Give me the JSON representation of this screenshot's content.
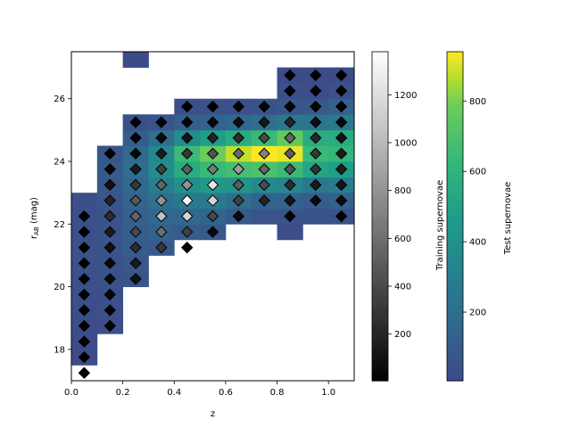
{
  "chart_data": {
    "type": "heatmap",
    "xlabel": "z",
    "ylabel_main": "r",
    "ylabel_sub": "AB",
    "ylabel_unit": " (mag)",
    "xlim": [
      0.0,
      1.1
    ],
    "ylim": [
      17.0,
      27.5
    ],
    "xticks": [
      0.0,
      0.2,
      0.4,
      0.6,
      0.8,
      1.0
    ],
    "xtick_labels": [
      "0.0",
      "0.2",
      "0.4",
      "0.6",
      "0.8",
      "1.0"
    ],
    "yticks": [
      18,
      20,
      22,
      24,
      26
    ],
    "ytick_labels": [
      "18",
      "20",
      "22",
      "24",
      "26"
    ],
    "bins": {
      "x_width": 0.1,
      "y_height": 0.5
    },
    "test_heatmap": {
      "name": "Test supernovae",
      "colormap": "viridis",
      "vmin": 5,
      "vmax": 940,
      "cbar_ticks": [
        200,
        400,
        600,
        800
      ],
      "cbar_tick_labels": [
        "200",
        "400",
        "600",
        "800"
      ],
      "cells": [
        [
          0.05,
          17.75,
          20
        ],
        [
          0.05,
          18.25,
          20
        ],
        [
          0.05,
          18.75,
          25
        ],
        [
          0.05,
          19.25,
          25
        ],
        [
          0.05,
          19.75,
          30
        ],
        [
          0.05,
          20.25,
          30
        ],
        [
          0.05,
          20.75,
          35
        ],
        [
          0.05,
          21.25,
          35
        ],
        [
          0.05,
          21.75,
          40
        ],
        [
          0.05,
          22.25,
          40
        ],
        [
          0.05,
          22.75,
          30
        ],
        [
          0.15,
          18.75,
          30
        ],
        [
          0.15,
          19.25,
          35
        ],
        [
          0.15,
          19.75,
          40
        ],
        [
          0.15,
          20.25,
          45
        ],
        [
          0.15,
          20.75,
          50
        ],
        [
          0.15,
          21.25,
          55
        ],
        [
          0.15,
          21.75,
          60
        ],
        [
          0.15,
          22.25,
          60
        ],
        [
          0.15,
          22.75,
          70
        ],
        [
          0.15,
          23.25,
          80
        ],
        [
          0.15,
          23.75,
          90
        ],
        [
          0.15,
          24.25,
          70
        ],
        [
          0.25,
          20.25,
          60
        ],
        [
          0.25,
          20.75,
          80
        ],
        [
          0.25,
          21.25,
          100
        ],
        [
          0.25,
          21.75,
          110
        ],
        [
          0.25,
          22.25,
          120
        ],
        [
          0.25,
          22.75,
          150
        ],
        [
          0.25,
          23.25,
          180
        ],
        [
          0.25,
          23.75,
          200
        ],
        [
          0.25,
          24.25,
          180
        ],
        [
          0.25,
          24.75,
          100
        ],
        [
          0.25,
          25.25,
          40
        ],
        [
          0.25,
          27.25,
          15
        ],
        [
          0.35,
          21.25,
          90
        ],
        [
          0.35,
          21.75,
          130
        ],
        [
          0.35,
          22.25,
          160
        ],
        [
          0.35,
          22.75,
          220
        ],
        [
          0.35,
          23.25,
          300
        ],
        [
          0.35,
          23.75,
          380
        ],
        [
          0.35,
          24.25,
          360
        ],
        [
          0.35,
          24.75,
          200
        ],
        [
          0.35,
          25.25,
          60
        ],
        [
          0.45,
          21.75,
          100
        ],
        [
          0.45,
          22.25,
          170
        ],
        [
          0.45,
          22.75,
          260
        ],
        [
          0.45,
          23.25,
          400
        ],
        [
          0.45,
          23.75,
          560
        ],
        [
          0.45,
          24.25,
          650
        ],
        [
          0.45,
          24.75,
          380
        ],
        [
          0.45,
          25.25,
          120
        ],
        [
          0.45,
          25.75,
          30
        ],
        [
          0.55,
          21.75,
          80
        ],
        [
          0.55,
          22.25,
          150
        ],
        [
          0.55,
          22.75,
          260
        ],
        [
          0.55,
          23.25,
          450
        ],
        [
          0.55,
          23.75,
          640
        ],
        [
          0.55,
          24.25,
          780
        ],
        [
          0.55,
          24.75,
          480
        ],
        [
          0.55,
          25.25,
          140
        ],
        [
          0.55,
          25.75,
          35
        ],
        [
          0.65,
          22.25,
          90
        ],
        [
          0.65,
          22.75,
          200
        ],
        [
          0.65,
          23.25,
          420
        ],
        [
          0.65,
          23.75,
          680
        ],
        [
          0.65,
          24.25,
          880
        ],
        [
          0.65,
          24.75,
          560
        ],
        [
          0.65,
          25.25,
          170
        ],
        [
          0.65,
          25.75,
          40
        ],
        [
          0.75,
          22.25,
          60
        ],
        [
          0.75,
          22.75,
          140
        ],
        [
          0.75,
          23.25,
          360
        ],
        [
          0.75,
          23.75,
          700
        ],
        [
          0.75,
          24.25,
          940
        ],
        [
          0.75,
          24.75,
          640
        ],
        [
          0.75,
          25.25,
          200
        ],
        [
          0.75,
          25.75,
          45
        ],
        [
          0.85,
          21.75,
          30
        ],
        [
          0.85,
          22.25,
          60
        ],
        [
          0.85,
          22.75,
          140
        ],
        [
          0.85,
          23.25,
          340
        ],
        [
          0.85,
          23.75,
          650
        ],
        [
          0.85,
          24.25,
          920
        ],
        [
          0.85,
          24.75,
          760
        ],
        [
          0.85,
          25.25,
          260
        ],
        [
          0.85,
          25.75,
          70
        ],
        [
          0.85,
          26.25,
          30
        ],
        [
          0.85,
          26.75,
          15
        ],
        [
          0.95,
          22.25,
          50
        ],
        [
          0.95,
          22.75,
          110
        ],
        [
          0.95,
          23.25,
          260
        ],
        [
          0.95,
          23.75,
          520
        ],
        [
          0.95,
          24.25,
          640
        ],
        [
          0.95,
          24.75,
          560
        ],
        [
          0.95,
          25.25,
          240
        ],
        [
          0.95,
          25.75,
          80
        ],
        [
          0.95,
          26.25,
          25
        ],
        [
          0.95,
          26.75,
          12
        ],
        [
          1.05,
          22.25,
          50
        ],
        [
          1.05,
          22.75,
          130
        ],
        [
          1.05,
          23.25,
          280
        ],
        [
          1.05,
          23.75,
          480
        ],
        [
          1.05,
          24.25,
          620
        ],
        [
          1.05,
          24.75,
          560
        ],
        [
          1.05,
          25.25,
          270
        ],
        [
          1.05,
          25.75,
          140
        ],
        [
          1.05,
          26.25,
          45
        ],
        [
          1.05,
          26.75,
          15
        ]
      ]
    },
    "training_scatter": {
      "name": "Training supernovae",
      "colormap": "gray",
      "vmin": 5,
      "vmax": 1380,
      "cbar_ticks": [
        200,
        400,
        600,
        800,
        1000,
        1200
      ],
      "cbar_tick_labels": [
        "200",
        "400",
        "600",
        "800",
        "1000",
        "1200"
      ],
      "points": [
        [
          0.05,
          17.25,
          5
        ],
        [
          0.05,
          17.75,
          5
        ],
        [
          0.05,
          18.25,
          5
        ],
        [
          0.05,
          18.75,
          5
        ],
        [
          0.05,
          19.25,
          5
        ],
        [
          0.05,
          19.75,
          5
        ],
        [
          0.05,
          20.25,
          5
        ],
        [
          0.05,
          20.75,
          5
        ],
        [
          0.05,
          21.25,
          5
        ],
        [
          0.05,
          21.75,
          5
        ],
        [
          0.05,
          22.25,
          10
        ],
        [
          0.15,
          18.75,
          15
        ],
        [
          0.15,
          19.25,
          20
        ],
        [
          0.15,
          19.75,
          30
        ],
        [
          0.15,
          20.25,
          50
        ],
        [
          0.15,
          20.75,
          60
        ],
        [
          0.15,
          21.25,
          90
        ],
        [
          0.15,
          21.75,
          150
        ],
        [
          0.15,
          22.25,
          250
        ],
        [
          0.15,
          22.75,
          200
        ],
        [
          0.15,
          23.25,
          100
        ],
        [
          0.15,
          23.75,
          40
        ],
        [
          0.15,
          24.25,
          15
        ],
        [
          0.25,
          20.25,
          100
        ],
        [
          0.25,
          20.75,
          150
        ],
        [
          0.25,
          21.25,
          250
        ],
        [
          0.25,
          21.75,
          400
        ],
        [
          0.25,
          22.25,
          550
        ],
        [
          0.25,
          22.75,
          480
        ],
        [
          0.25,
          23.25,
          300
        ],
        [
          0.25,
          23.75,
          150
        ],
        [
          0.25,
          24.25,
          50
        ],
        [
          0.25,
          24.75,
          20
        ],
        [
          0.25,
          25.25,
          10
        ],
        [
          0.35,
          21.25,
          300
        ],
        [
          0.35,
          21.75,
          600
        ],
        [
          0.35,
          22.25,
          1050
        ],
        [
          0.35,
          22.75,
          800
        ],
        [
          0.35,
          23.25,
          550
        ],
        [
          0.35,
          23.75,
          350
        ],
        [
          0.35,
          24.25,
          150
        ],
        [
          0.35,
          24.75,
          50
        ],
        [
          0.35,
          25.25,
          20
        ],
        [
          0.45,
          21.25,
          5
        ],
        [
          0.45,
          21.75,
          350
        ],
        [
          0.45,
          22.25,
          1150
        ],
        [
          0.45,
          22.75,
          1380
        ],
        [
          0.45,
          23.25,
          800
        ],
        [
          0.45,
          23.75,
          500
        ],
        [
          0.45,
          24.25,
          300
        ],
        [
          0.45,
          24.75,
          120
        ],
        [
          0.45,
          25.25,
          30
        ],
        [
          0.45,
          25.75,
          10
        ],
        [
          0.55,
          21.75,
          60
        ],
        [
          0.55,
          22.25,
          400
        ],
        [
          0.55,
          22.75,
          1150
        ],
        [
          0.55,
          23.25,
          1250
        ],
        [
          0.55,
          23.75,
          650
        ],
        [
          0.55,
          24.25,
          450
        ],
        [
          0.55,
          24.75,
          200
        ],
        [
          0.55,
          25.25,
          50
        ],
        [
          0.55,
          25.75,
          10
        ],
        [
          0.65,
          22.25,
          60
        ],
        [
          0.65,
          22.75,
          350
        ],
        [
          0.65,
          23.25,
          500
        ],
        [
          0.65,
          23.75,
          850
        ],
        [
          0.65,
          24.25,
          550
        ],
        [
          0.65,
          24.75,
          250
        ],
        [
          0.65,
          25.25,
          80
        ],
        [
          0.65,
          25.75,
          20
        ],
        [
          0.75,
          22.75,
          200
        ],
        [
          0.75,
          23.25,
          400
        ],
        [
          0.75,
          23.75,
          550
        ],
        [
          0.75,
          24.25,
          700
        ],
        [
          0.75,
          24.75,
          400
        ],
        [
          0.75,
          25.25,
          130
        ],
        [
          0.75,
          25.75,
          25
        ],
        [
          0.85,
          22.25,
          30
        ],
        [
          0.85,
          22.75,
          120
        ],
        [
          0.85,
          23.25,
          250
        ],
        [
          0.85,
          23.75,
          450
        ],
        [
          0.85,
          24.25,
          500
        ],
        [
          0.85,
          24.75,
          550
        ],
        [
          0.85,
          25.25,
          200
        ],
        [
          0.85,
          25.75,
          40
        ],
        [
          0.85,
          26.25,
          15
        ],
        [
          0.85,
          26.75,
          5
        ],
        [
          0.95,
          22.75,
          60
        ],
        [
          0.95,
          23.25,
          150
        ],
        [
          0.95,
          23.75,
          280
        ],
        [
          0.95,
          24.25,
          300
        ],
        [
          0.95,
          24.75,
          220
        ],
        [
          0.95,
          25.25,
          80
        ],
        [
          0.95,
          25.75,
          25
        ],
        [
          0.95,
          26.25,
          10
        ],
        [
          0.95,
          26.75,
          5
        ],
        [
          1.05,
          22.25,
          20
        ],
        [
          1.05,
          22.75,
          60
        ],
        [
          1.05,
          23.25,
          120
        ],
        [
          1.05,
          23.75,
          170
        ],
        [
          1.05,
          24.25,
          150
        ],
        [
          1.05,
          24.75,
          100
        ],
        [
          1.05,
          25.25,
          50
        ],
        [
          1.05,
          25.75,
          20
        ],
        [
          1.05,
          26.25,
          10
        ],
        [
          1.05,
          26.75,
          5
        ]
      ]
    }
  }
}
